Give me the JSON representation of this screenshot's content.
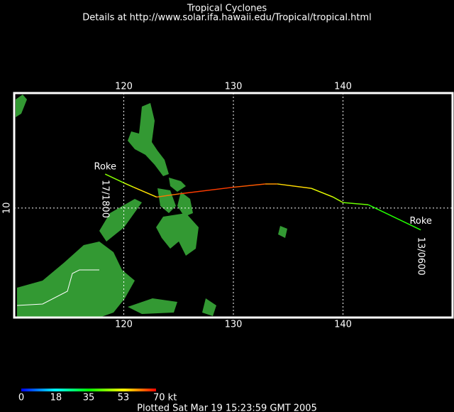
{
  "header": {
    "title": "Tropical Cyclones",
    "subtitle": "Details at http://www.solar.ifa.hawaii.edu/Tropical/tropical.html"
  },
  "map": {
    "xlim": [
      110,
      150
    ],
    "ylim": [
      0,
      20.5
    ],
    "xticks": [
      120,
      130,
      140
    ],
    "yticks": [
      10
    ],
    "grid": true,
    "land_color": "#339933",
    "border_color": "#ffffff"
  },
  "storm": {
    "name": "Roke",
    "start_time": "13/0600",
    "end_time": "17/1800",
    "lon": [
      147.1,
      142.3,
      140.0,
      139.1,
      137.1,
      134.0,
      132.9,
      130.0,
      125.1,
      123.0,
      120.9,
      120.0,
      118.3
    ],
    "lat": [
      8.0,
      10.3,
      10.5,
      11.0,
      11.8,
      12.2,
      12.2,
      11.9,
      11.3,
      11.0,
      11.9,
      12.3,
      13.1
    ],
    "kt": [
      35,
      40,
      45,
      50,
      53,
      58,
      62,
      66,
      66,
      58,
      52,
      47,
      42
    ]
  },
  "colorbar": {
    "ticks": [
      0,
      18,
      35,
      53,
      {
        "value": 70,
        "label": "70 kt"
      }
    ],
    "colors": [
      "#0000ff",
      "#00ffff",
      "#00ff00",
      "#ffff00",
      "#ff0000"
    ]
  },
  "footer": "Plotted Sat Mar 19 15:23:59 GMT 2005"
}
